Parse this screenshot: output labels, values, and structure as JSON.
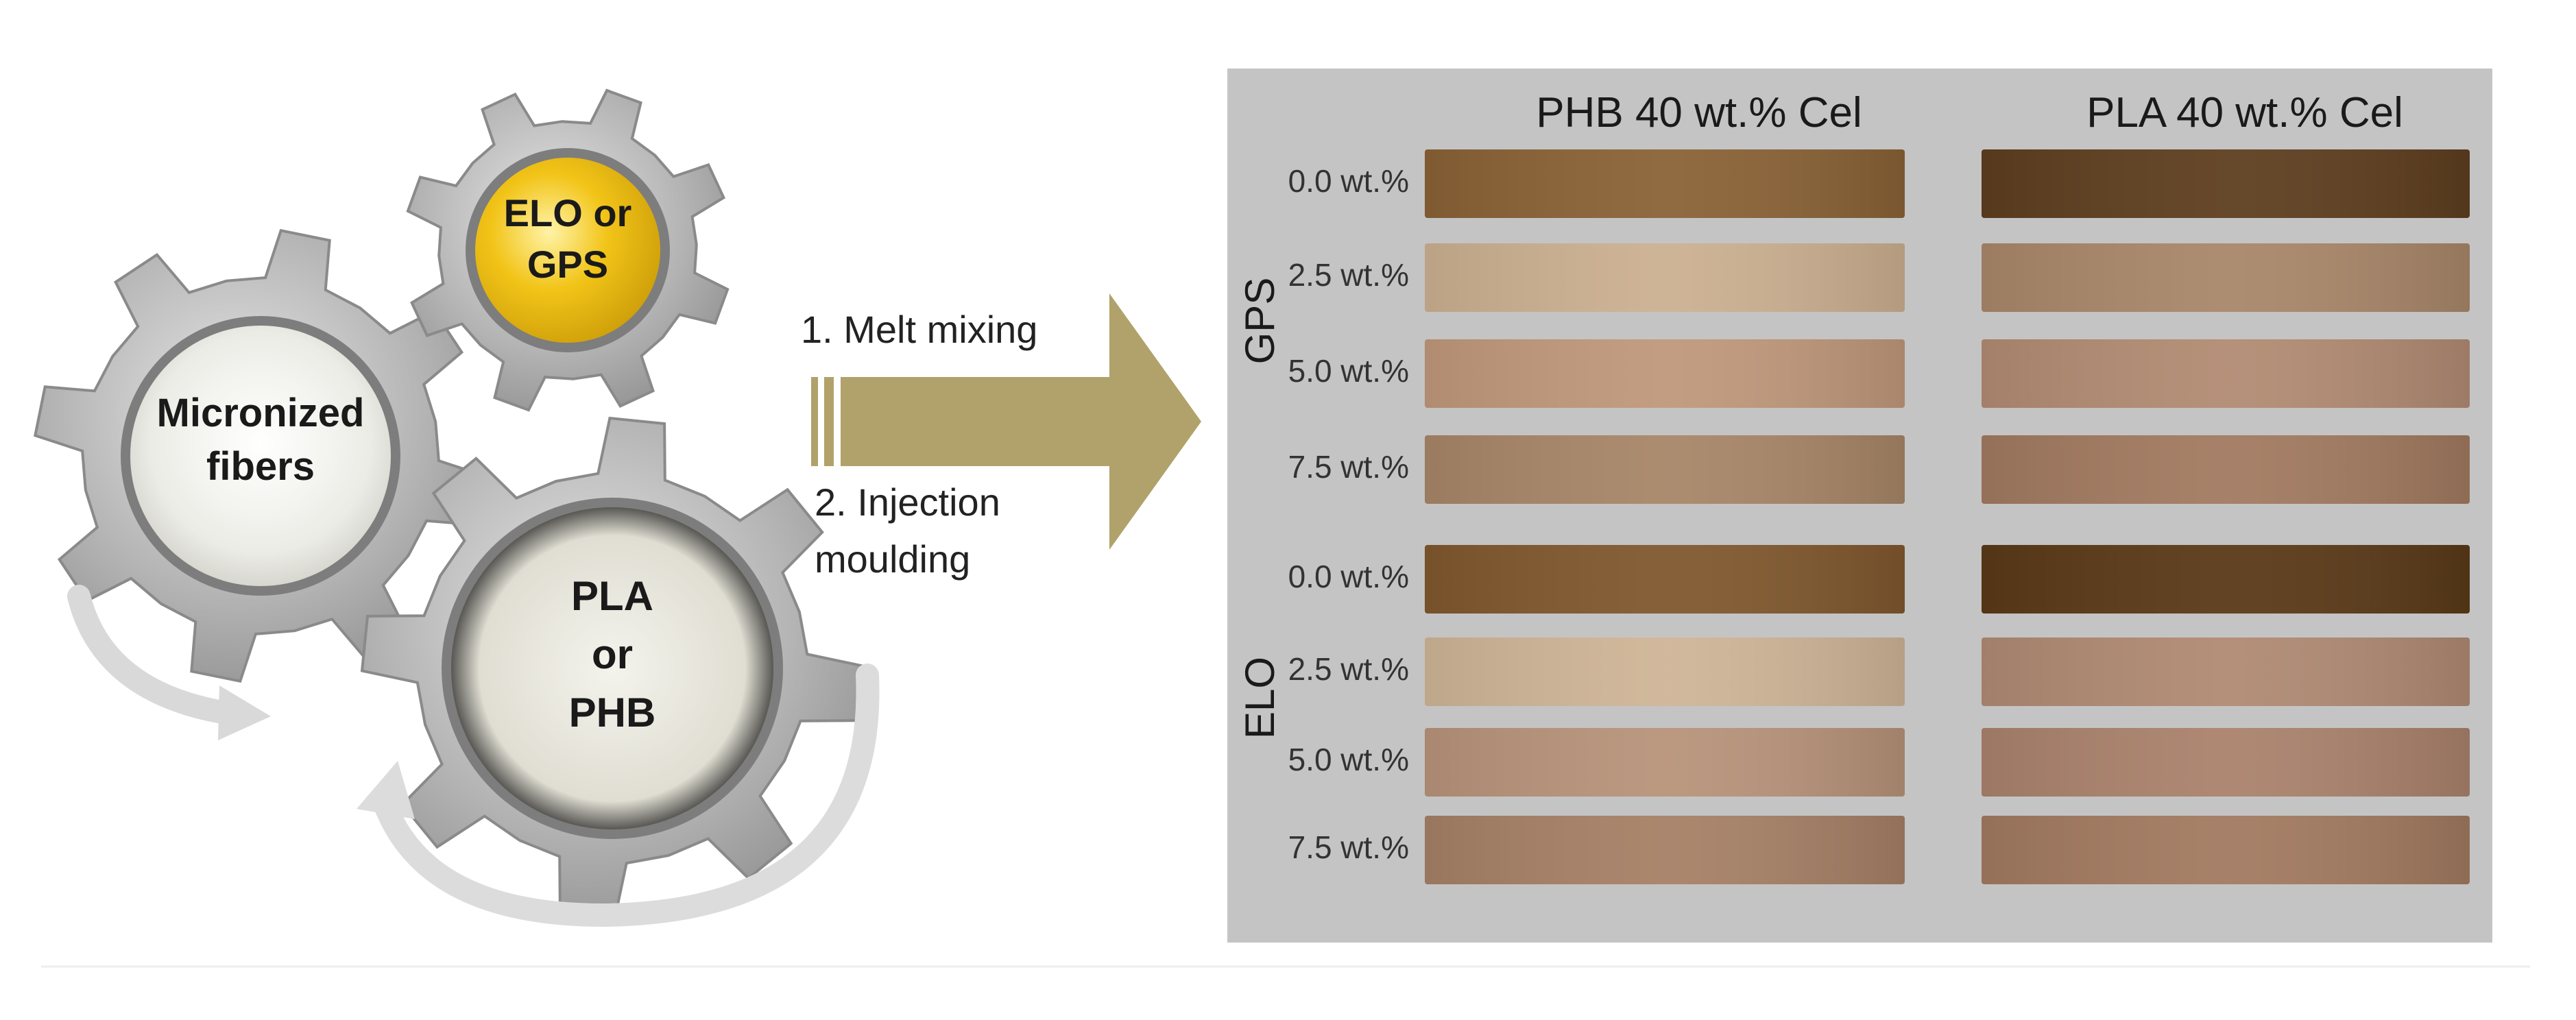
{
  "gears": {
    "micronized": [
      "Micronized",
      "fibers"
    ],
    "additive": [
      "ELO or",
      "GPS"
    ],
    "polymer": [
      "PLA",
      "or",
      "PHB"
    ]
  },
  "process": {
    "step1": "1. Melt mixing",
    "step2_line1": "2. Injection",
    "step2_line2": "moulding"
  },
  "samples": {
    "col_phb": "PHB 40 wt.% Cel",
    "col_pla": "PLA 40 wt.% Cel",
    "group_gps": "GPS",
    "group_elo": "ELO",
    "rows": [
      {
        "label": "0.0 wt.%",
        "phb": "#8a6236",
        "pla": "#5e3e1f"
      },
      {
        "label": "2.5 wt.%",
        "phb": "#ccb091",
        "pla": "#a9876a"
      },
      {
        "label": "5.0 wt.%",
        "phb": "#c0987b",
        "pla": "#b28b73"
      },
      {
        "label": "7.5 wt.%",
        "phb": "#a88668",
        "pla": "#a27a60"
      },
      {
        "label": "0.0 wt.%",
        "phb": "#80582e",
        "pla": "#5a3a18"
      },
      {
        "label": "2.5 wt.%",
        "phb": "#cfb597",
        "pla": "#b08a73"
      },
      {
        "label": "5.0 wt.%",
        "phb": "#b8937a",
        "pla": "#aa826c"
      },
      {
        "label": "7.5 wt.%",
        "phb": "#a68066",
        "pla": "#a27a60"
      }
    ]
  },
  "colors": {
    "arrow": "#b0a26a",
    "gear": "#a9a9a9",
    "panel": "#c4c4c4"
  }
}
